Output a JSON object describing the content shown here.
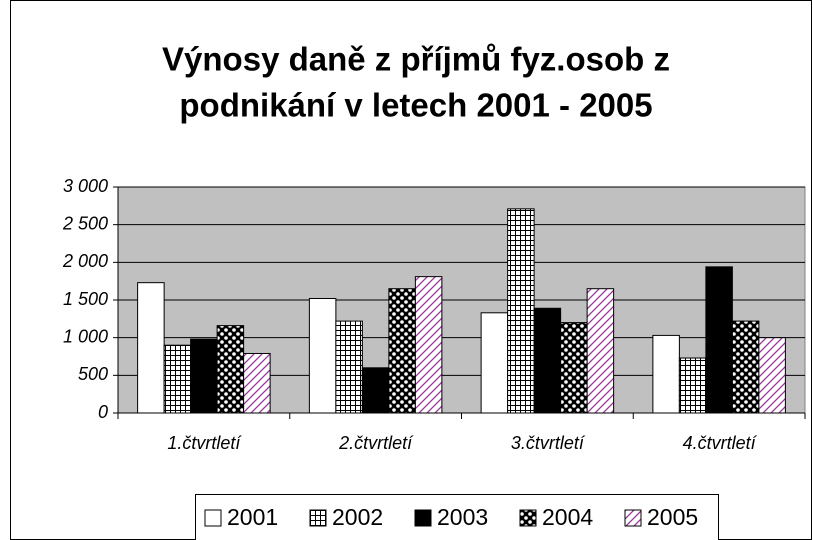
{
  "chart_data": {
    "type": "bar",
    "title": [
      "Výnosy daně z příjmů fyz.osob z",
      "podnikání v letech  2001 - 2005"
    ],
    "categories": [
      "1.čtvrtletí",
      "2.čtvrtletí",
      "3.čtvrtletí",
      "4.čtvrtletí"
    ],
    "series": [
      {
        "name": "2001",
        "color": "#ffffff",
        "pattern": "solid",
        "values": [
          1730,
          1520,
          1330,
          1030
        ]
      },
      {
        "name": "2002",
        "color": "#ffffff",
        "pattern": "grid",
        "values": [
          900,
          1220,
          2710,
          730
        ]
      },
      {
        "name": "2003",
        "color": "#000000",
        "pattern": "solid",
        "values": [
          980,
          600,
          1390,
          1940
        ]
      },
      {
        "name": "2004",
        "color": "#000000",
        "pattern": "dots",
        "values": [
          1160,
          1650,
          1200,
          1220
        ]
      },
      {
        "name": "2005",
        "color": "#993399",
        "pattern": "diagonal",
        "values": [
          790,
          1810,
          1650,
          1000
        ]
      }
    ],
    "ylim": [
      0,
      3000
    ],
    "yticks": [
      0,
      500,
      {
        "value": 1000,
        "label": "1 000"
      },
      {
        "value": 1500,
        "label": "1 500"
      },
      {
        "value": 2000,
        "label": "2 000"
      },
      {
        "value": 2500,
        "label": "2 500"
      },
      {
        "value": 3000,
        "label": "3 000"
      }
    ],
    "grid": true,
    "legend": "bottom",
    "plot_background": "#c0c0c0"
  }
}
